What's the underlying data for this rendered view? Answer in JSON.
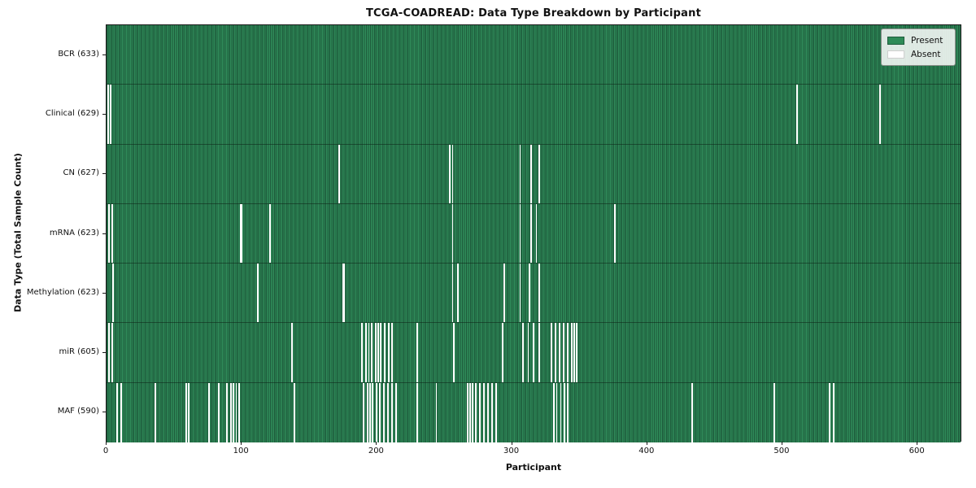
{
  "title": "TCGA-COADREAD: Data Type Breakdown by Participant",
  "xlabel": "Participant",
  "ylabel": "Data Type (Total Sample Count)",
  "legend": {
    "present_label": "Present",
    "absent_label": "Absent"
  },
  "colors": {
    "present_fill": "#2f8a59",
    "present_edge": "#1e5c3c",
    "absent": "#ffffff",
    "plot_border": "#1a1a1a",
    "legend_bg": "#f3f4f3",
    "legend_border": "#8a8f8a"
  },
  "chart_data": {
    "type": "heatmap",
    "title": "TCGA-COADREAD: Data Type Breakdown by Participant",
    "xlabel": "Participant",
    "ylabel": "Data Type (Total Sample Count)",
    "legend_entries": [
      "Present",
      "Absent"
    ],
    "legend_position": "upper right",
    "x_range": [
      0,
      633
    ],
    "n_participants": 633,
    "x_ticks": [
      0,
      100,
      200,
      300,
      400,
      500,
      600
    ],
    "cell_states": [
      "present",
      "absent"
    ],
    "rows": [
      {
        "name": "BCR",
        "label": "BCR (633)",
        "total": 633,
        "absent_count": 0,
        "absent_participants": []
      },
      {
        "name": "Clinical",
        "label": "Clinical (629)",
        "total": 629,
        "absent_count": 4,
        "absent_participants": [
          1,
          3,
          511,
          572
        ]
      },
      {
        "name": "CN",
        "label": "CN (627)",
        "total": 627,
        "absent_count": 6,
        "absent_participants": [
          172,
          254,
          256,
          306,
          314,
          320
        ]
      },
      {
        "name": "mRNA",
        "label": "mRNA (623)",
        "total": 623,
        "absent_count": 10,
        "absent_participants": [
          2,
          4,
          99,
          100,
          121,
          256,
          306,
          314,
          318,
          376
        ]
      },
      {
        "name": "Methylation",
        "label": "Methylation (623)",
        "total": 623,
        "absent_count": 10,
        "absent_participants": [
          5,
          112,
          175,
          176,
          256,
          260,
          294,
          306,
          313,
          320
        ]
      },
      {
        "name": "miR",
        "label": "miR (605)",
        "total": 605,
        "absent_count": 28,
        "absent_participants": [
          2,
          4,
          137,
          189,
          192,
          194,
          196,
          199,
          201,
          203,
          206,
          209,
          211,
          230,
          257,
          293,
          308,
          312,
          316,
          320,
          329,
          332,
          335,
          338,
          341,
          344,
          346,
          348
        ]
      },
      {
        "name": "MAF",
        "label": "MAF (590)",
        "total": 590,
        "absent_count": 43,
        "absent_participants": [
          8,
          11,
          36,
          59,
          61,
          76,
          83,
          89,
          92,
          94,
          96,
          98,
          139,
          190,
          193,
          195,
          197,
          200,
          202,
          205,
          208,
          211,
          214,
          230,
          244,
          267,
          269,
          271,
          273,
          276,
          279,
          282,
          285,
          288,
          331,
          333,
          336,
          339,
          341,
          433,
          494,
          535,
          538
        ]
      }
    ]
  }
}
